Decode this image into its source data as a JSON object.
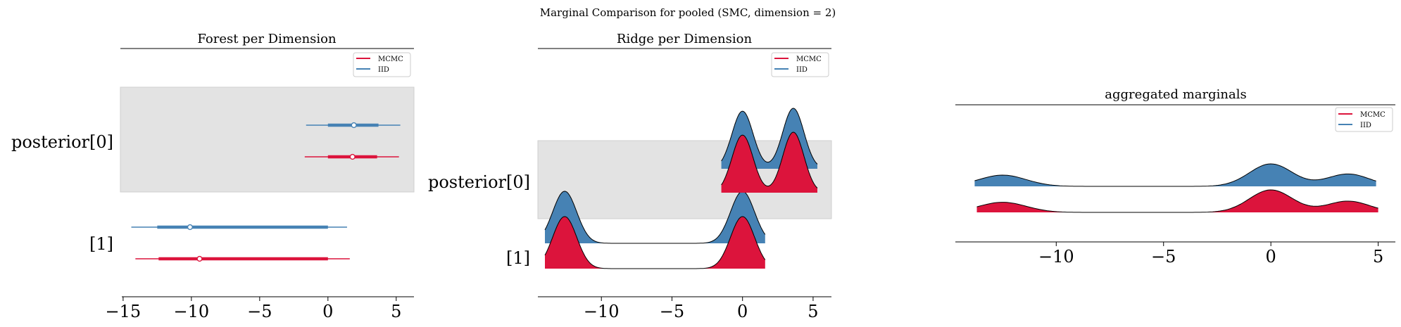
{
  "figure": {
    "suptitle": "Marginal Comparison for pooled (SMC, dimension = 2)"
  },
  "colors": {
    "mcmc": "#dc143c",
    "iid": "#4682b4",
    "band": "#e3e3e3",
    "outline": "#000000"
  },
  "chart_data": [
    {
      "type": "forest",
      "title": "Forest per Dimension",
      "xlim": [
        -15.2,
        6.3
      ],
      "xticks": [
        -15,
        -10,
        -5,
        0,
        5
      ],
      "xtick_labels": [
        "−15",
        "−10",
        "−5",
        "0",
        "5"
      ],
      "ylabels": [
        "posterior[0]",
        "[1]"
      ],
      "legend": {
        "placement": "top-right",
        "entries": [
          "MCMC",
          "IID"
        ]
      },
      "shaded_row": "posterior[0]",
      "rows": [
        {
          "label": "posterior[0]",
          "series": [
            {
              "name": "IID",
              "whisker": [
                -1.6,
                5.3
              ],
              "box": [
                0.0,
                3.7
              ],
              "point": 1.9
            },
            {
              "name": "MCMC",
              "whisker": [
                -1.7,
                5.2
              ],
              "box": [
                0.0,
                3.6
              ],
              "point": 1.8
            }
          ]
        },
        {
          "label": "[1]",
          "series": [
            {
              "name": "IID",
              "whisker": [
                -14.4,
                1.4
              ],
              "box": [
                -12.5,
                0.0
              ],
              "point": -10.1
            },
            {
              "name": "MCMC",
              "whisker": [
                -14.1,
                1.6
              ],
              "box": [
                -12.4,
                0.0
              ],
              "point": -9.4
            }
          ]
        }
      ]
    },
    {
      "type": "ridge",
      "title": "Ridge per Dimension",
      "xlim": [
        -14.5,
        6.3
      ],
      "xticks": [
        -10,
        -5,
        0,
        5
      ],
      "xtick_labels": [
        "−10",
        "−5",
        "0",
        "5"
      ],
      "ylabels": [
        "posterior[0]",
        "[1]"
      ],
      "legend": {
        "placement": "top-right",
        "entries": [
          "MCMC",
          "IID"
        ]
      },
      "shaded_row": "posterior[0]",
      "rows": [
        {
          "label": "posterior[0]",
          "range": [
            -1.5,
            5.3
          ],
          "modes": [
            {
              "center": 0.0,
              "sigma": 0.75,
              "weight": 1.0
            },
            {
              "center": 3.6,
              "sigma": 0.75,
              "weight": 1.05
            }
          ]
        },
        {
          "label": "[1]",
          "range": [
            -14.0,
            1.6
          ],
          "modes": [
            {
              "center": -12.6,
              "sigma": 0.85,
              "weight": 1.0
            },
            {
              "center": 0.0,
              "sigma": 0.85,
              "weight": 1.0
            }
          ]
        }
      ]
    },
    {
      "type": "ridge",
      "title": "aggregated marginals",
      "xlim": [
        -14.7,
        5.8
      ],
      "xticks": [
        -10,
        -5,
        0,
        5
      ],
      "xtick_labels": [
        "−10",
        "−5",
        "0",
        "5"
      ],
      "legend": {
        "placement": "top-right",
        "entries": [
          "MCMC",
          "IID"
        ]
      },
      "series": [
        {
          "name": "IID",
          "range": [
            -13.8,
            4.9
          ],
          "modes": [
            {
              "center": -12.5,
              "sigma": 1.1,
              "weight": 0.5
            },
            {
              "center": 0.0,
              "sigma": 1.0,
              "weight": 1.0
            },
            {
              "center": 3.6,
              "sigma": 1.0,
              "weight": 0.55
            }
          ]
        },
        {
          "name": "MCMC",
          "range": [
            -13.7,
            5.0
          ],
          "modes": [
            {
              "center": -12.5,
              "sigma": 1.1,
              "weight": 0.45
            },
            {
              "center": 0.0,
              "sigma": 1.0,
              "weight": 1.0
            },
            {
              "center": 3.6,
              "sigma": 1.0,
              "weight": 0.5
            }
          ]
        }
      ]
    }
  ]
}
